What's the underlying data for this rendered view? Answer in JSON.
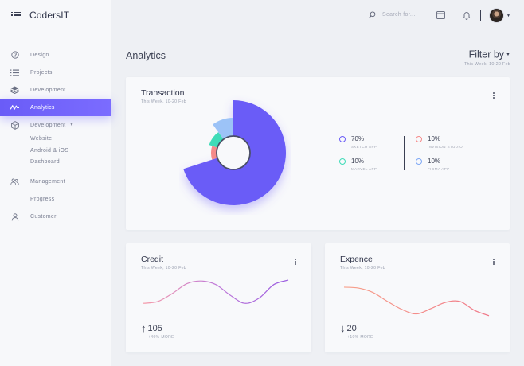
{
  "app": {
    "title": "CodersIT"
  },
  "sidebar": {
    "items": [
      {
        "label": "Design",
        "icon": "help-circle-icon"
      },
      {
        "label": "Projects",
        "icon": "list-icon"
      },
      {
        "label": "Development",
        "icon": "layers-icon"
      },
      {
        "label": "Analytics",
        "icon": "activity-icon",
        "active": true
      },
      {
        "label": "Development",
        "icon": "cube-icon"
      }
    ],
    "subitems": [
      "Website",
      "Android & iOS",
      "Dashboard"
    ],
    "items_after": [
      {
        "label": "Management",
        "icon": "users-icon"
      },
      {
        "label": "Progress",
        "icon": "none"
      },
      {
        "label": "Customer",
        "icon": "user-icon"
      }
    ]
  },
  "topbar": {
    "search_placeholder": "Search for...",
    "icons": [
      "search-icon",
      "window-icon",
      "bell-icon",
      "avatar"
    ]
  },
  "page": {
    "title": "Analytics",
    "filter_label": "Filter by",
    "filter_sub": "This Week, 10-20 Feb"
  },
  "transaction": {
    "title": "Transaction",
    "subtitle": "This Week, 10-20 Feb",
    "legend": [
      {
        "value": "70%",
        "label": "SKETCH APP",
        "color": "#6a5cf7"
      },
      {
        "value": "10%",
        "label": "INVISION STUDIO",
        "color": "#f58a8a"
      },
      {
        "value": "10%",
        "label": "MARVEL APP",
        "color": "#3fdcb8"
      },
      {
        "value": "10%",
        "label": "FIGMA APP",
        "color": "#7fa8f5"
      }
    ]
  },
  "chart_data": [
    {
      "type": "pie",
      "categories": [
        "SKETCH APP",
        "INVISION STUDIO",
        "MARVEL APP",
        "FIGMA APP"
      ],
      "values": [
        70,
        10,
        10,
        10
      ],
      "colors": [
        "#6a5cf7",
        "#f58a8a",
        "#3fdcb8",
        "#9cc3f7"
      ]
    },
    {
      "type": "line",
      "series": [
        {
          "values": [
            30,
            34,
            52,
            74,
            80,
            72,
            48,
            30,
            42,
            72,
            82
          ]
        }
      ]
    },
    {
      "type": "line",
      "series": [
        {
          "values": [
            84,
            82,
            72,
            52,
            34,
            24,
            36,
            50,
            52,
            32,
            20
          ]
        }
      ]
    }
  ],
  "credit": {
    "title": "Credit",
    "subtitle": "This Week, 10-20 Feb",
    "arrow": "↑",
    "value": "105",
    "more": "+40% MORE",
    "color": "#b070e0"
  },
  "expence": {
    "title": "Expence",
    "subtitle": "This Week, 10-20 Feb",
    "arrow": "↓",
    "value": "20",
    "more": "+10% MORE",
    "color": "#f58a8a"
  }
}
